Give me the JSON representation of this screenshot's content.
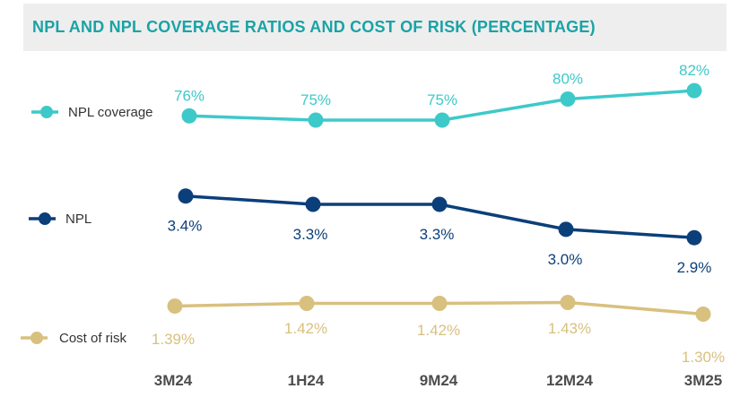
{
  "title": "NPL AND NPL COVERAGE RATIOS AND COST OF RISK (PERCENTAGE)",
  "chart_data": {
    "type": "line",
    "title": "NPL AND NPL COVERAGE RATIOS AND COST OF RISK (PERCENTAGE)",
    "categories": [
      "3M24",
      "1H24",
      "9M24",
      "12M24",
      "3M25"
    ],
    "series": [
      {
        "name": "NPL coverage",
        "color": "#3ec9c9",
        "label_color": "#3ec9c9",
        "label_position": "above",
        "values": [
          76,
          75,
          75,
          80,
          82
        ],
        "labels": [
          "76%",
          "75%",
          "75%",
          "80%",
          "82%"
        ]
      },
      {
        "name": "NPL",
        "color": "#0b3f7a",
        "label_color": "#0b3f7a",
        "label_position": "below",
        "values": [
          3.4,
          3.3,
          3.3,
          3.0,
          2.9
        ],
        "labels": [
          "3.4%",
          "3.3%",
          "3.3%",
          "3.0%",
          "2.9%"
        ]
      },
      {
        "name": "Cost of risk",
        "color": "#d8c07e",
        "label_color": "#d8c07e",
        "label_position": "mixed",
        "values": [
          1.39,
          1.42,
          1.42,
          1.43,
          1.3
        ],
        "labels": [
          "1.39%",
          "1.42%",
          "1.42%",
          "1.43%",
          "1.30%"
        ]
      }
    ],
    "legend_position": "left",
    "grid": false
  }
}
